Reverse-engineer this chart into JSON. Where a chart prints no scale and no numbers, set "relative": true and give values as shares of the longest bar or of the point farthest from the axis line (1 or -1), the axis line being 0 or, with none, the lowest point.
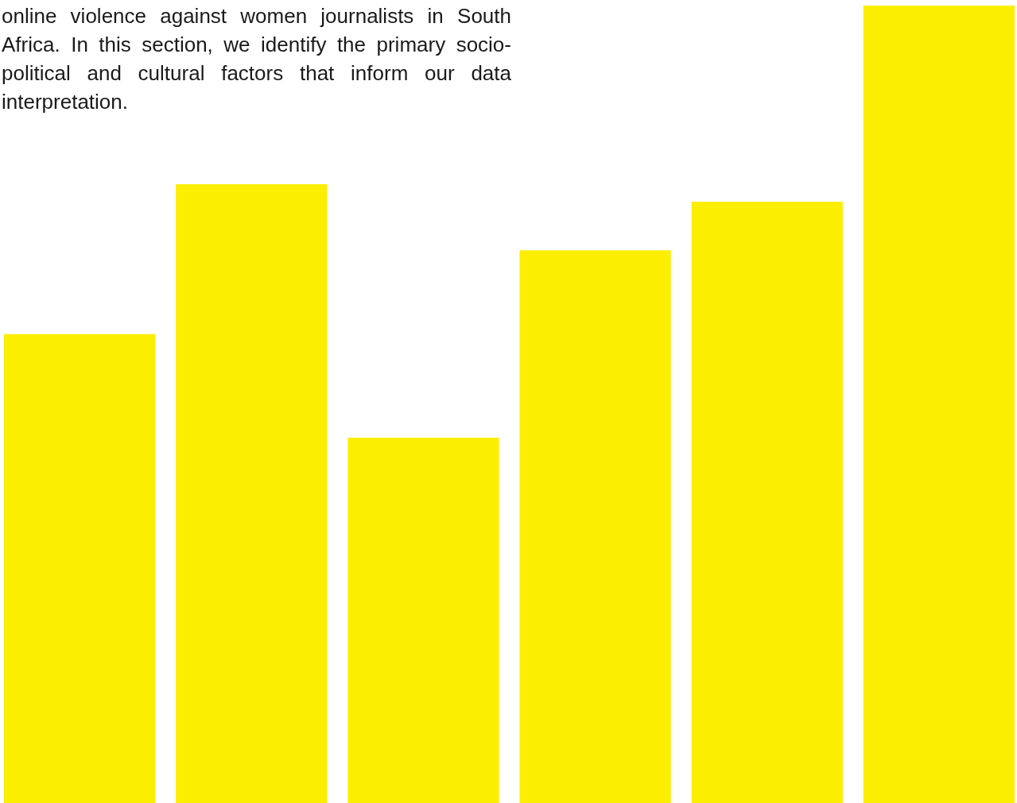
{
  "chart_data": {
    "type": "bar",
    "relative": true,
    "categories": [
      null,
      null,
      null,
      null,
      null,
      null
    ],
    "values": [
      0.588,
      0.776,
      0.458,
      0.693,
      0.754,
      1
    ],
    "color": "#fcee00",
    "annotations": [
      "online violence against women journalists in South Africa. In this section, we identify the primary socio-political and cultural factors that inform our data interpretation."
    ]
  }
}
